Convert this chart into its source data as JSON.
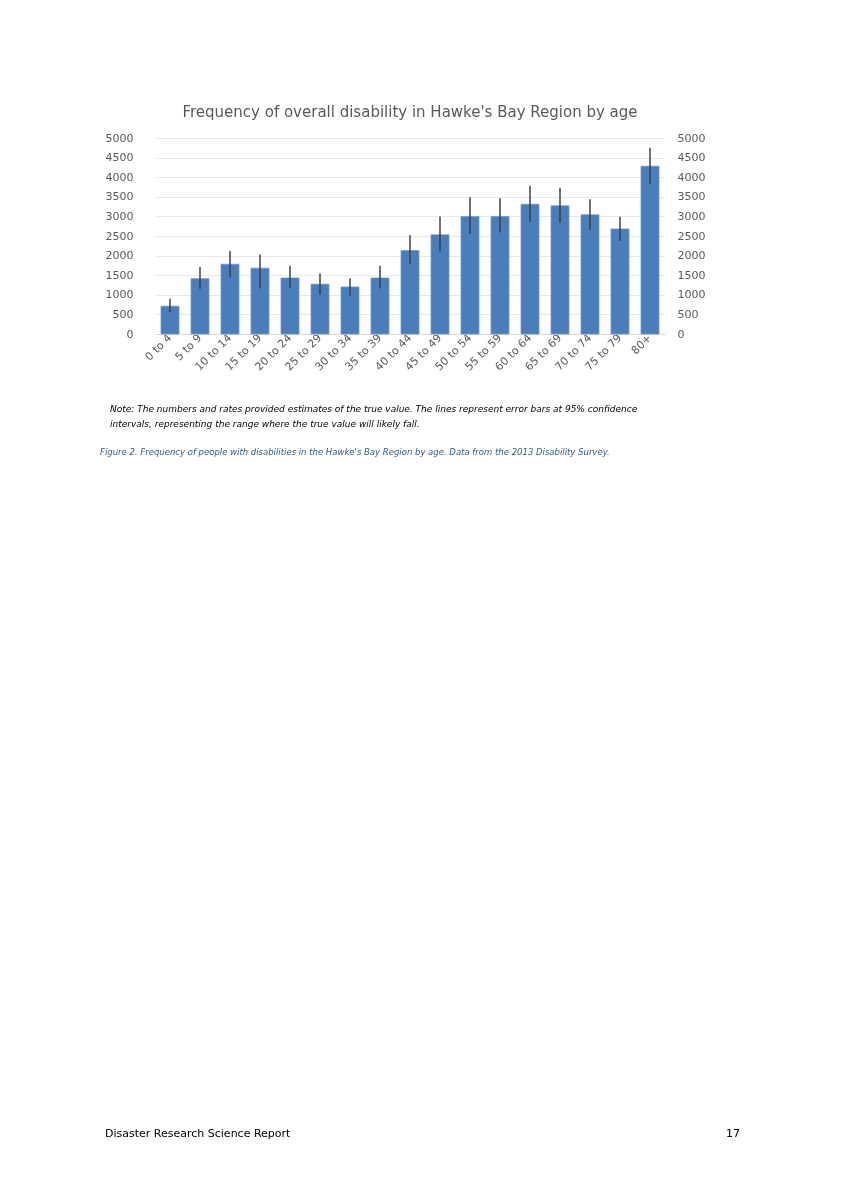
{
  "chart_data": {
    "type": "bar",
    "title": "Frequency of overall disability in Hawke's Bay Region by age",
    "categories": [
      "0 to 4",
      "5 to 9",
      "10 to 14",
      "15 to 19",
      "20 to 24",
      "25 to 29",
      "30 to 34",
      "35 to 39",
      "40 to 44",
      "45 to 49",
      "50 to 54",
      "55 to 59",
      "60 to 64",
      "65 to 69",
      "70 to 74",
      "75 to 79",
      "80+"
    ],
    "values": [
      710,
      1410,
      1780,
      1680,
      1430,
      1270,
      1200,
      1430,
      2130,
      2530,
      3000,
      3000,
      3310,
      3270,
      3040,
      2680,
      4280
    ],
    "errors": [
      [
        550,
        900
      ],
      [
        1150,
        1710
      ],
      [
        1460,
        2120
      ],
      [
        1160,
        2030
      ],
      [
        1160,
        1740
      ],
      [
        1000,
        1550
      ],
      [
        980,
        1420
      ],
      [
        1160,
        1740
      ],
      [
        1790,
        2520
      ],
      [
        2110,
        3000
      ],
      [
        2560,
        3490
      ],
      [
        2590,
        3460
      ],
      [
        2860,
        3780
      ],
      [
        2840,
        3730
      ],
      [
        2650,
        3440
      ],
      [
        2370,
        2990
      ],
      [
        3820,
        4750
      ]
    ],
    "color": "#4a7ebb",
    "ylim": [
      0,
      5000
    ],
    "yticks": [
      0,
      500,
      1000,
      1500,
      2000,
      2500,
      3000,
      3500,
      4000,
      4500,
      5000
    ],
    "y2lim": [
      0,
      5000
    ],
    "y2ticks": [
      0,
      500,
      1000,
      1500,
      2000,
      2500,
      3000,
      3500,
      4000,
      4500,
      5000
    ],
    "grid": "y",
    "annotations": [
      "Note: The numbers and rates provided estimates of the true value. The lines represent error bars at 95% confidence",
      "intervals, representing the range where the true value will likely fall.",
      "Figure 2. Frequency of people with disabilities in the Hawke's Bay Region by age. Data from the 2013 Disability Survey.",
      "Disaster Research Science Report",
      "17"
    ]
  }
}
